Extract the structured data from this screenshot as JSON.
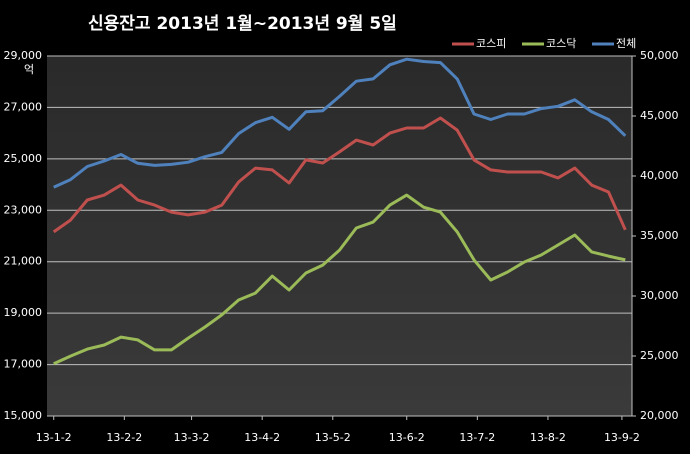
{
  "chart_data": {
    "type": "line",
    "title": "신용잔고 2013년 1월~2013년 9월 5일",
    "y_unit": "억",
    "x": [
      0,
      5,
      10,
      15,
      20,
      25,
      30,
      35,
      40,
      45,
      50,
      55,
      60,
      65,
      70,
      75,
      80,
      85,
      90,
      95,
      100,
      105,
      110,
      115,
      120,
      125,
      130,
      135,
      140,
      145,
      150,
      155,
      160,
      165,
      170
    ],
    "xlim": [
      -2,
      172
    ],
    "xticks": [
      {
        "value": 0,
        "label": "13-1-2"
      },
      {
        "value": 21,
        "label": "13-2-2"
      },
      {
        "value": 41,
        "label": "13-3-2"
      },
      {
        "value": 62,
        "label": "13-4-2"
      },
      {
        "value": 83,
        "label": "13-5-2"
      },
      {
        "value": 105,
        "label": "13-6-2"
      },
      {
        "value": 126,
        "label": "13-7-2"
      },
      {
        "value": 147,
        "label": "13-8-2"
      },
      {
        "value": 169,
        "label": "13-9-2"
      }
    ],
    "ylim": [
      15000,
      29000
    ],
    "yticks": [
      {
        "value": 15000,
        "label": "15,000"
      },
      {
        "value": 17000,
        "label": "17,000"
      },
      {
        "value": 19000,
        "label": "19,000"
      },
      {
        "value": 21000,
        "label": "21,000"
      },
      {
        "value": 23000,
        "label": "23,000"
      },
      {
        "value": 25000,
        "label": "25,000"
      },
      {
        "value": 27000,
        "label": "27,000"
      },
      {
        "value": 29000,
        "label": "29,000"
      }
    ],
    "y2lim": [
      20000,
      50000
    ],
    "y2ticks": [
      {
        "value": 20000,
        "label": "20,000"
      },
      {
        "value": 25000,
        "label": "25,000"
      },
      {
        "value": 30000,
        "label": "30,000"
      },
      {
        "value": 35000,
        "label": "35,000"
      },
      {
        "value": 40000,
        "label": "40,000"
      },
      {
        "value": 45000,
        "label": "45,000"
      },
      {
        "value": 50000,
        "label": "50,000"
      }
    ],
    "grid": true,
    "legend": "top-right",
    "series": [
      {
        "name": "코스피",
        "color": "#c0504d",
        "axis": "y",
        "values": [
          22160,
          22620,
          23400,
          23590,
          23980,
          23400,
          23200,
          22930,
          22820,
          22930,
          23200,
          24100,
          24640,
          24570,
          24060,
          24960,
          24840,
          25270,
          25730,
          25540,
          26000,
          26200,
          26200,
          26590,
          26120,
          24960,
          24570,
          24490,
          24490,
          24490,
          24260,
          24640,
          23980,
          23710,
          22240
        ]
      },
      {
        "name": "코스닥",
        "color": "#9bbb59",
        "axis": "y",
        "values": [
          17030,
          17330,
          17600,
          17760,
          18070,
          17960,
          17570,
          17570,
          18030,
          18460,
          18930,
          19510,
          19780,
          20440,
          19900,
          20560,
          20870,
          21450,
          22310,
          22540,
          23200,
          23590,
          23120,
          22930,
          22160,
          21070,
          20290,
          20600,
          20990,
          21260,
          21650,
          22040,
          21380,
          21220,
          21070
        ]
      },
      {
        "name": "전체",
        "color": "#4f81bd",
        "axis": "y2",
        "values": [
          39060,
          39700,
          40790,
          41250,
          41790,
          41060,
          40880,
          40970,
          41150,
          41610,
          41970,
          43530,
          44440,
          44890,
          43890,
          45350,
          45440,
          46630,
          47900,
          48090,
          49270,
          49730,
          49540,
          49450,
          48090,
          45170,
          44710,
          45170,
          45170,
          45620,
          45810,
          46350,
          45350,
          44710,
          43350
        ]
      }
    ]
  }
}
